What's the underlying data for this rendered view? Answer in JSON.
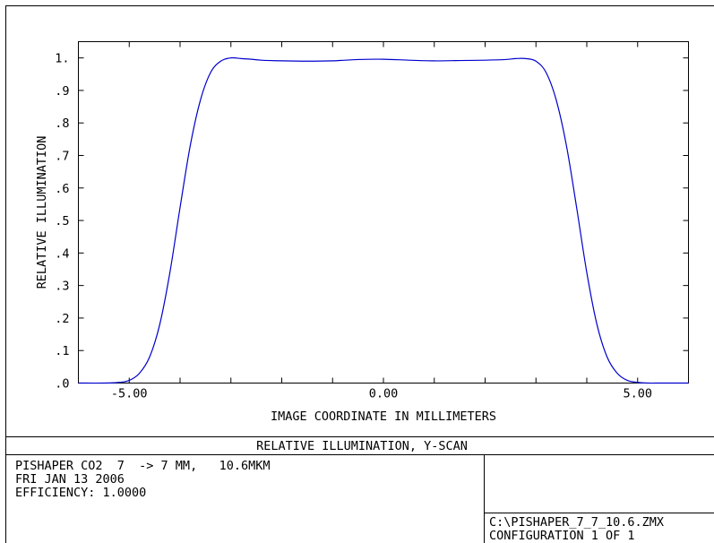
{
  "chart_data": {
    "type": "line",
    "title": "",
    "xlabel": "IMAGE COORDINATE IN MILLIMETERS",
    "ylabel": "RELATIVE ILLUMINATION",
    "xlim": [
      -6.0,
      6.0
    ],
    "ylim": [
      0.0,
      1.05
    ],
    "x_tick_labels": [
      {
        "value": -5.0,
        "label": "-5.00"
      },
      {
        "value": 0.0,
        "label": "0.00"
      },
      {
        "value": 5.0,
        "label": "5.00"
      }
    ],
    "x_ticks": [
      -5,
      -4,
      -3,
      -2,
      -1,
      0,
      1,
      2,
      3,
      4,
      5
    ],
    "y_tick_labels": [
      {
        "value": 0.0,
        "label": ".0"
      },
      {
        "value": 0.1,
        "label": ".1"
      },
      {
        "value": 0.2,
        "label": ".2"
      },
      {
        "value": 0.3,
        "label": ".3"
      },
      {
        "value": 0.4,
        "label": ".4"
      },
      {
        "value": 0.5,
        "label": ".5"
      },
      {
        "value": 0.6,
        "label": ".6"
      },
      {
        "value": 0.7,
        "label": ".7"
      },
      {
        "value": 0.8,
        "label": ".8"
      },
      {
        "value": 0.9,
        "label": ".9"
      },
      {
        "value": 1.0,
        "label": "1."
      }
    ],
    "grid": false,
    "line_color": "#0000cc",
    "series": [
      {
        "x": [
          -6.0,
          -5.5,
          -5.2,
          -5.0,
          -4.8,
          -4.6,
          -4.4,
          -4.2,
          -4.0,
          -3.8,
          -3.6,
          -3.4,
          -3.2,
          -3.0,
          -2.8,
          -2.6,
          -2.4,
          -2.0,
          -1.5,
          -1.0,
          -0.5,
          0.0,
          0.5,
          1.0,
          1.5,
          2.0,
          2.4,
          2.6,
          2.8,
          3.0,
          3.2,
          3.4,
          3.6,
          3.8,
          4.0,
          4.2,
          4.4,
          4.6,
          4.8,
          5.0,
          5.2,
          5.5,
          6.0
        ],
        "y": [
          0.0,
          0.0,
          0.002,
          0.008,
          0.03,
          0.08,
          0.18,
          0.34,
          0.54,
          0.73,
          0.87,
          0.955,
          0.99,
          1.0,
          0.998,
          0.996,
          0.993,
          0.991,
          0.99,
          0.991,
          0.995,
          0.996,
          0.993,
          0.991,
          0.992,
          0.993,
          0.995,
          0.998,
          0.998,
          0.99,
          0.955,
          0.87,
          0.73,
          0.54,
          0.34,
          0.18,
          0.08,
          0.03,
          0.008,
          0.002,
          0.0,
          0.0,
          0.0
        ]
      }
    ]
  },
  "footer": {
    "title": "RELATIVE ILLUMINATION, Y-SCAN",
    "info_lines": [
      "PISHAPER CO2  7  -> 7 MM,   10.6MKM",
      "FRI JAN 13 2006",
      "EFFICIENCY: 1.0000"
    ],
    "file_lines": [
      "C:\\PISHAPER_7_7_10.6.ZMX",
      "CONFIGURATION 1 OF 1"
    ]
  }
}
